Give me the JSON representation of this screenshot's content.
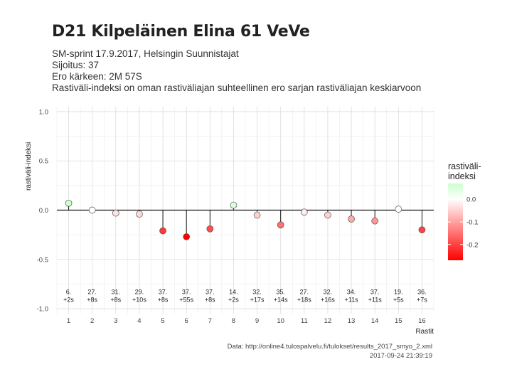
{
  "header": {
    "title": "D21 Kilpeläinen Elina 61 VeVe",
    "line1": "SM-sprint 17.9.2017, Helsingin Suunnistajat",
    "line2": "Sijoitus: 37",
    "line3": "Ero kärkeen: 2M 57S",
    "line4": "Rastiväli-indeksi on oman rastiväliajan suhteellinen ero sarjan rastiväliajan keskiarvoon"
  },
  "caption": {
    "source": "Data: http://online4.tulospalvelu.fi/tulokset/results_2017_smyo_2.xml",
    "timestamp": "2017-09-24 21:39:19"
  },
  "chart_data": {
    "type": "scatter",
    "xlabel": "Rastit",
    "ylabel": "rastiväli-indeksi",
    "xlim": [
      0.5,
      16.5
    ],
    "ylim": [
      -1.05,
      1.05
    ],
    "x_ticks": [
      "1",
      "2",
      "3",
      "4",
      "5",
      "6",
      "7",
      "8",
      "9",
      "10",
      "11",
      "12",
      "13",
      "14",
      "15",
      "16"
    ],
    "y_ticks": [
      "-1.0",
      "-0.5",
      "0.0",
      "0.5",
      "1.0"
    ],
    "x": [
      1,
      2,
      3,
      4,
      5,
      6,
      7,
      8,
      9,
      10,
      11,
      12,
      13,
      14,
      15,
      16
    ],
    "values": [
      0.07,
      0.0,
      -0.03,
      -0.04,
      -0.21,
      -0.27,
      -0.19,
      0.05,
      -0.05,
      -0.15,
      -0.02,
      -0.05,
      -0.09,
      -0.11,
      0.01,
      -0.2
    ],
    "labels_rank": [
      "6.",
      "27.",
      "31.",
      "29.",
      "37.",
      "37.",
      "37.",
      "14.",
      "32.",
      "35.",
      "27.",
      "32.",
      "34.",
      "37.",
      "19.",
      "36."
    ],
    "labels_diff": [
      "+2s",
      "+8s",
      "+8s",
      "+10s",
      "+8s",
      "+55s",
      "+8s",
      "+2s",
      "+17s",
      "+14s",
      "+18s",
      "+16s",
      "+11s",
      "+11s",
      "+5s",
      "+7s"
    ],
    "legend": {
      "title_line1": "rastiväli-",
      "title_line2": "indeksi",
      "ticks": [
        "0.0",
        "-0.1",
        "-0.2"
      ],
      "color_low": "#ff0000",
      "color_mid": "#ffffff",
      "color_high": "#ccffcc"
    },
    "grid": true
  }
}
